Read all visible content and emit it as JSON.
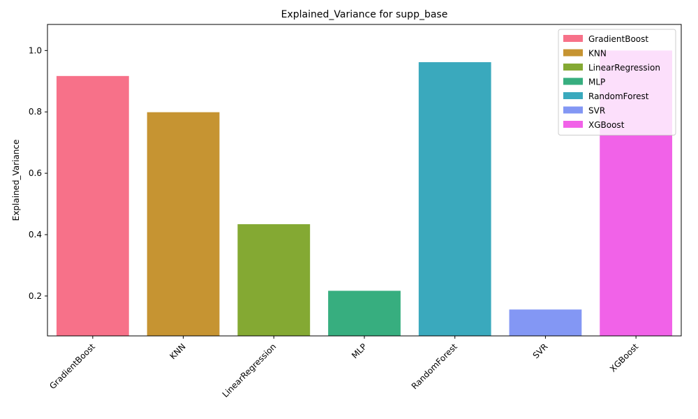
{
  "chart_data": {
    "type": "bar",
    "title": "Explained_Variance for supp_base",
    "xlabel": "",
    "ylabel": "Explained_Variance",
    "categories": [
      "GradientBoost",
      "KNN",
      "LinearRegression",
      "MLP",
      "RandomForest",
      "SVR",
      "XGBoost"
    ],
    "values": [
      0.917,
      0.799,
      0.434,
      0.217,
      0.962,
      0.156,
      1.0
    ],
    "colors": [
      "#f77189",
      "#c69432",
      "#84a933",
      "#37ae7f",
      "#3aa9bd",
      "#8397f4",
      "#f162e8"
    ],
    "ylim": [
      0.07,
      1.085
    ],
    "yticks": [
      0.2,
      0.4,
      0.6,
      0.8,
      1.0
    ],
    "ytick_labels": [
      "0.2",
      "0.4",
      "0.6",
      "0.8",
      "1.0"
    ],
    "grid": false,
    "legend": {
      "placement": "top-right",
      "entries": [
        "GradientBoost",
        "KNN",
        "LinearRegression",
        "MLP",
        "RandomForest",
        "SVR",
        "XGBoost"
      ]
    }
  }
}
